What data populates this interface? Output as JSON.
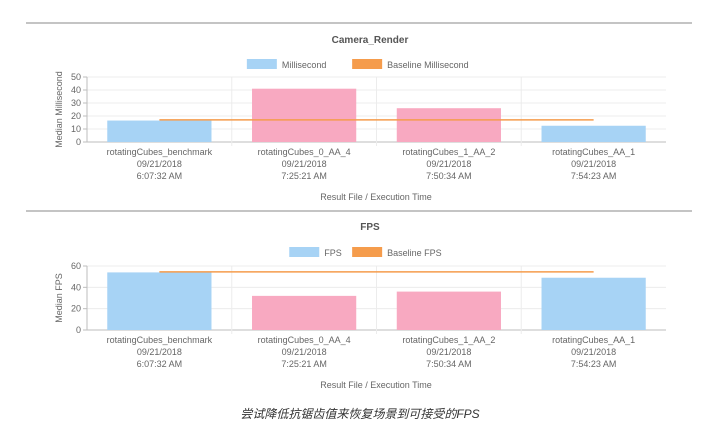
{
  "caption": "尝试降低抗锯齿值来恢复场景到可接受的FPS",
  "chart_data": [
    {
      "type": "bar",
      "title": "Camera_Render",
      "xlabel": "Result File / Execution Time",
      "ylabel": "Median Millisecond",
      "ylim": [
        0,
        50
      ],
      "yticks": [
        0,
        10,
        20,
        30,
        40,
        50
      ],
      "categories": [
        [
          "rotatingCubes_benchmark",
          "09/21/2018",
          "6:07:32 AM"
        ],
        [
          "rotatingCubes_0_AA_4",
          "09/21/2018",
          "7:25:21 AM"
        ],
        [
          "rotatingCubes_1_AA_2",
          "09/21/2018",
          "7:50:34 AM"
        ],
        [
          "rotatingCubes_AA_1",
          "09/21/2018",
          "7:54:23 AM"
        ]
      ],
      "series": [
        {
          "name": "Millisecond",
          "kind": "bar",
          "values": [
            16.5,
            41,
            26,
            12.5
          ],
          "colors": [
            "#a7d3f5",
            "#f8a9c1",
            "#f8a9c1",
            "#a7d3f5"
          ]
        },
        {
          "name": "Baseline Millisecond",
          "kind": "line",
          "values": [
            17,
            17,
            17,
            17
          ],
          "color": "#f59c4c"
        }
      ],
      "legend_colors": [
        "#a7d3f5",
        "#f59c4c"
      ],
      "legend": "top-center",
      "grid": true
    },
    {
      "type": "bar",
      "title": "FPS",
      "xlabel": "Result File / Execution Time",
      "ylabel": "Median FPS",
      "ylim": [
        0,
        60
      ],
      "yticks": [
        0,
        20,
        40,
        60
      ],
      "categories": [
        [
          "rotatingCubes_benchmark",
          "09/21/2018",
          "6:07:32 AM"
        ],
        [
          "rotatingCubes_0_AA_4",
          "09/21/2018",
          "7:25:21 AM"
        ],
        [
          "rotatingCubes_1_AA_2",
          "09/21/2018",
          "7:50:34 AM"
        ],
        [
          "rotatingCubes_AA_1",
          "09/21/2018",
          "7:54:23 AM"
        ]
      ],
      "series": [
        {
          "name": "FPS",
          "kind": "bar",
          "values": [
            54,
            32,
            36,
            49
          ],
          "colors": [
            "#a7d3f5",
            "#f8a9c1",
            "#f8a9c1",
            "#a7d3f5"
          ]
        },
        {
          "name": "Baseline FPS",
          "kind": "line",
          "values": [
            54.5,
            54.5,
            54.5,
            54.5
          ],
          "color": "#f59c4c"
        }
      ],
      "legend_colors": [
        "#a7d3f5",
        "#f59c4c"
      ],
      "legend": "top-center",
      "grid": true
    }
  ]
}
